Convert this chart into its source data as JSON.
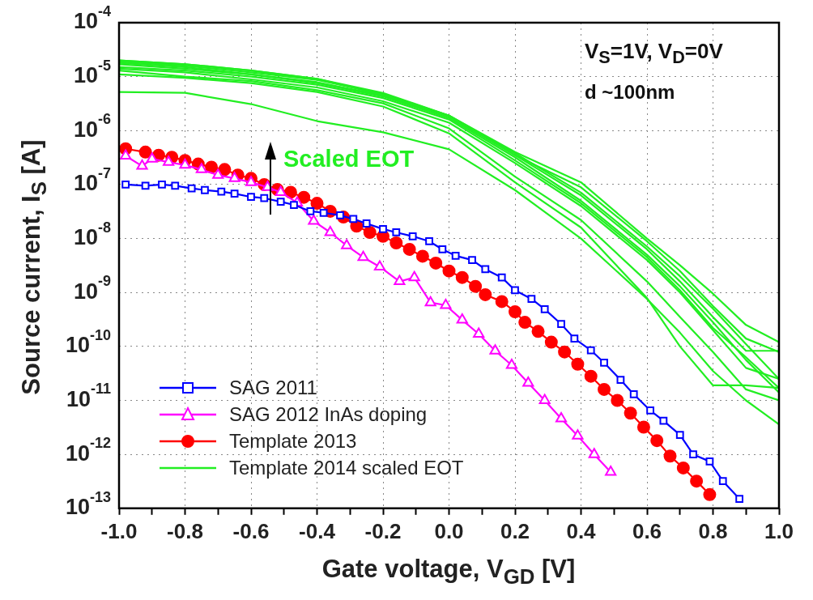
{
  "chart_data": {
    "type": "line",
    "xlabel": "Gate voltage, V$_{GD}$ [V]",
    "ylabel": "Source current, I$_{S}$ [A]",
    "annotations": [
      "V$_{S}$=1V, V$_{D}$=0V",
      "d ~100nm",
      "Scaled EOT"
    ],
    "log": "y",
    "grid": true,
    "legend": "bottom left",
    "xlim": [
      -1.0,
      1.0
    ],
    "xticks": [
      {
        "value": -1.0,
        "label": "-1.0"
      },
      {
        "value": -0.9,
        "label": null
      },
      {
        "value": -0.8,
        "label": "-0.8"
      },
      {
        "value": -0.7,
        "label": null
      },
      {
        "value": -0.6,
        "label": "-0.6"
      },
      {
        "value": -0.5,
        "label": null
      },
      {
        "value": -0.4,
        "label": "-0.4"
      },
      {
        "value": -0.3,
        "label": null
      },
      {
        "value": -0.2,
        "label": "-0.2"
      },
      {
        "value": -0.1,
        "label": null
      },
      {
        "value": 0.0,
        "label": "0.0"
      },
      {
        "value": 0.1,
        "label": null
      },
      {
        "value": 0.2,
        "label": "0.2"
      },
      {
        "value": 0.3,
        "label": null
      },
      {
        "value": 0.4,
        "label": "0.4"
      },
      {
        "value": 0.5,
        "label": null
      },
      {
        "value": 0.6,
        "label": "0.6"
      },
      {
        "value": 0.7,
        "label": null
      },
      {
        "value": 0.8,
        "label": "0.8"
      },
      {
        "value": 0.9,
        "label": null
      },
      {
        "value": 1.0,
        "label": "1.0"
      }
    ],
    "ylim": [
      1e-13,
      0.0001
    ],
    "yticks": [
      {
        "value": 1e-13,
        "label": "10$^{-13}$"
      },
      {
        "value": 1e-12,
        "label": "10$^{-12}$"
      },
      {
        "value": 1e-11,
        "label": "10$^{-11}$"
      },
      {
        "value": 1e-10,
        "label": "10$^{-10}$"
      },
      {
        "value": 1e-09,
        "label": "10$^{-9}$"
      },
      {
        "value": 1e-08,
        "label": "10$^{-8}$"
      },
      {
        "value": 1e-07,
        "label": "10$^{-7}$"
      },
      {
        "value": 1e-06,
        "label": "10$^{-6}$"
      },
      {
        "value": 1e-05,
        "label": "10$^{-5}$"
      },
      {
        "value": 0.0001,
        "label": "10$^{-4}$"
      }
    ],
    "x": [
      -1.0,
      -0.8,
      -0.6,
      -0.4,
      -0.2,
      0.0,
      0.2,
      0.4,
      0.6,
      0.7,
      0.8,
      0.9,
      1.0
    ],
    "series": [
      {
        "name": "SAG 2011",
        "color": "#0000ff",
        "marker": "square",
        "x": [
          -0.98,
          -0.92,
          -0.87,
          -0.83,
          -0.78,
          -0.74,
          -0.69,
          -0.65,
          -0.6,
          -0.56,
          -0.51,
          -0.47,
          -0.42,
          -0.38,
          -0.33,
          -0.29,
          -0.25,
          -0.2,
          -0.16,
          -0.11,
          -0.06,
          -0.02,
          0.02,
          0.07,
          0.11,
          0.16,
          0.2,
          0.25,
          0.29,
          0.34,
          0.38,
          0.43,
          0.47,
          0.52,
          0.56,
          0.61,
          0.65,
          0.7,
          0.74,
          0.79,
          0.83,
          0.88
        ],
        "values": [
          1e-07,
          9.5e-08,
          1e-07,
          9.5e-08,
          8.5e-08,
          7.9e-08,
          7.4e-08,
          6.8e-08,
          5.9e-08,
          5.6e-08,
          4.8e-08,
          4.2e-08,
          3.2e-08,
          3e-08,
          2.7e-08,
          2.3e-08,
          1.9e-08,
          1.5e-08,
          1.3e-08,
          1.1e-08,
          8.9e-09,
          6.3e-09,
          4.8e-09,
          4e-09,
          2.7e-09,
          1.9e-09,
          1.1e-09,
          7.6e-10,
          4.9e-10,
          2.6e-10,
          1.4e-10,
          8.5e-11,
          5e-11,
          2.4e-11,
          1.3e-11,
          6.5e-12,
          4.2e-12,
          2.3e-12,
          1e-12,
          7.4e-13,
          3.2e-13,
          1.5e-13
        ]
      },
      {
        "name": "SAG 2012 InAs doping",
        "color": "#ff00ff",
        "marker": "triangle",
        "x": [
          -0.98,
          -0.93,
          -0.9,
          -0.85,
          -0.8,
          -0.75,
          -0.7,
          -0.65,
          -0.6,
          -0.55,
          -0.51,
          -0.46,
          -0.41,
          -0.36,
          -0.31,
          -0.26,
          -0.21,
          -0.15,
          -0.105,
          -0.056,
          -0.01,
          0.04,
          0.09,
          0.14,
          0.19,
          0.24,
          0.29,
          0.34,
          0.39,
          0.44,
          0.49
        ],
        "values": [
          3.4e-07,
          2.2e-07,
          3e-07,
          2.6e-07,
          2.3e-07,
          1.9e-07,
          1.5e-07,
          1.3e-07,
          1.1e-07,
          8.9e-08,
          7.2e-08,
          4.6e-08,
          2.1e-08,
          1.3e-08,
          7.4e-09,
          4.5e-09,
          3e-09,
          1.6e-09,
          1.9e-09,
          6.5e-10,
          5.8e-10,
          3.1e-10,
          1.7e-10,
          8.3e-11,
          4.5e-11,
          2.1e-11,
          1e-11,
          4.6e-12,
          2.2e-12,
          1e-12,
          4.7e-13
        ]
      },
      {
        "name": "Template 2013",
        "color": "#ff0000",
        "marker": "circle",
        "x": [
          -0.98,
          -0.92,
          -0.88,
          -0.84,
          -0.8,
          -0.76,
          -0.72,
          -0.68,
          -0.64,
          -0.6,
          -0.56,
          -0.52,
          -0.48,
          -0.44,
          -0.4,
          -0.36,
          -0.32,
          -0.28,
          -0.24,
          -0.2,
          -0.16,
          -0.12,
          -0.08,
          -0.04,
          0.0,
          0.04,
          0.08,
          0.11,
          0.16,
          0.2,
          0.23,
          0.27,
          0.31,
          0.35,
          0.39,
          0.43,
          0.47,
          0.51,
          0.55,
          0.59,
          0.63,
          0.67,
          0.71,
          0.75,
          0.79
        ],
        "values": [
          4.6e-07,
          4e-07,
          3.5e-07,
          3.2e-07,
          2.8e-07,
          2.4e-07,
          2.1e-07,
          1.9e-07,
          1.5e-07,
          1.3e-07,
          1e-07,
          8.1e-08,
          7.2e-08,
          5.8e-08,
          4.5e-08,
          3.2e-08,
          2.5e-08,
          1.7e-08,
          1.3e-08,
          1.1e-08,
          8.3e-09,
          6.3e-09,
          4.7e-09,
          3.5e-09,
          2.5e-09,
          1.9e-09,
          1.3e-09,
          9.1e-10,
          6.8e-10,
          4.4e-10,
          2.8e-10,
          1.9e-10,
          1.2e-10,
          7.9e-11,
          4.7e-11,
          2.8e-11,
          1.6e-11,
          1e-11,
          5.8e-12,
          3.2e-12,
          1.8e-12,
          9.3e-13,
          5.6e-13,
          3.2e-13,
          1.8e-13
        ]
      },
      {
        "name": "Template 2014 scaled EOT",
        "color": "#22ee22",
        "marker": "none",
        "values": [
          2e-05,
          1.7e-05,
          1.3e-05,
          9.1e-06,
          4.6e-06,
          1.9e-06,
          4e-07,
          1.1e-07,
          1e-08,
          3.2e-09,
          9.5e-10,
          2.5e-10,
          1.2e-10
        ]
      },
      {
        "color": "#22ee22",
        "marker": "none",
        "values": [
          2e-05,
          1.7e-05,
          1.3e-05,
          9.1e-06,
          5e-06,
          1.9e-06,
          3.5e-07,
          8.9e-08,
          8.9e-09,
          2.5e-09,
          5.6e-10,
          1.4e-10,
          7.9e-11
        ]
      },
      {
        "color": "#22ee22",
        "marker": "none",
        "values": [
          1.9e-05,
          1.6e-05,
          1.2e-05,
          8.7e-06,
          4.8e-06,
          1.9e-06,
          3.8e-07,
          7.1e-08,
          7.1e-09,
          2e-09,
          5e-10,
          1.1e-10,
          2.5e-11
        ]
      },
      {
        "color": "#22ee22",
        "marker": "none",
        "values": [
          1.8e-05,
          1.5e-05,
          1.1e-05,
          7.9e-06,
          4.5e-06,
          1.8e-06,
          3.5e-07,
          6.3e-08,
          6.3e-09,
          1.6e-09,
          3.5e-10,
          8.3e-11,
          8.3e-11
        ]
      },
      {
        "color": "#22ee22",
        "marker": "none",
        "values": [
          1.7e-05,
          1.4e-05,
          1.1e-05,
          7.6e-06,
          4.3e-06,
          1.7e-06,
          3.2e-07,
          5e-08,
          5e-09,
          1.3e-09,
          2.8e-10,
          5.6e-11,
          1.4e-11
        ]
      },
      {
        "color": "#22ee22",
        "marker": "none",
        "values": [
          1.5e-05,
          1.3e-05,
          1e-05,
          7.1e-06,
          4e-06,
          1.6e-06,
          2.8e-07,
          4.5e-08,
          4.5e-09,
          1.1e-09,
          2.2e-10,
          6.3e-11,
          1.7e-11
        ]
      },
      {
        "color": "#22ee22",
        "marker": "none",
        "values": [
          1.4e-05,
          1.2e-05,
          8.9e-06,
          6.3e-06,
          3.5e-06,
          1.4e-06,
          2.5e-07,
          4e-08,
          4e-09,
          1e-09,
          2e-10,
          4e-11,
          2.5e-11
        ]
      },
      {
        "color": "#22ee22",
        "marker": "none",
        "values": [
          1.3e-05,
          1e-05,
          8.3e-06,
          5.6e-06,
          3.2e-06,
          1.1e-06,
          1.4e-07,
          2.2e-08,
          1.6e-09,
          3.5e-10,
          7.9e-11,
          1.6e-11,
          1e-11
        ]
      },
      {
        "color": "#22ee22",
        "marker": "none",
        "values": [
          1.1e-05,
          9.5e-06,
          7.6e-06,
          5.2e-06,
          2.8e-06,
          8.9e-07,
          1.1e-07,
          1.6e-08,
          7.9e-10,
          1e-10,
          1.9e-11,
          1.9e-11,
          1.7e-11
        ]
      },
      {
        "color": "#22ee22",
        "marker": "none",
        "values": [
          5.2e-06,
          5e-06,
          3.1e-06,
          1.5e-06,
          9.3e-07,
          4.5e-07,
          7.9e-08,
          1e-08,
          7.6e-10,
          1.8e-10,
          3.5e-11,
          1e-11,
          3.6e-12
        ]
      }
    ]
  }
}
